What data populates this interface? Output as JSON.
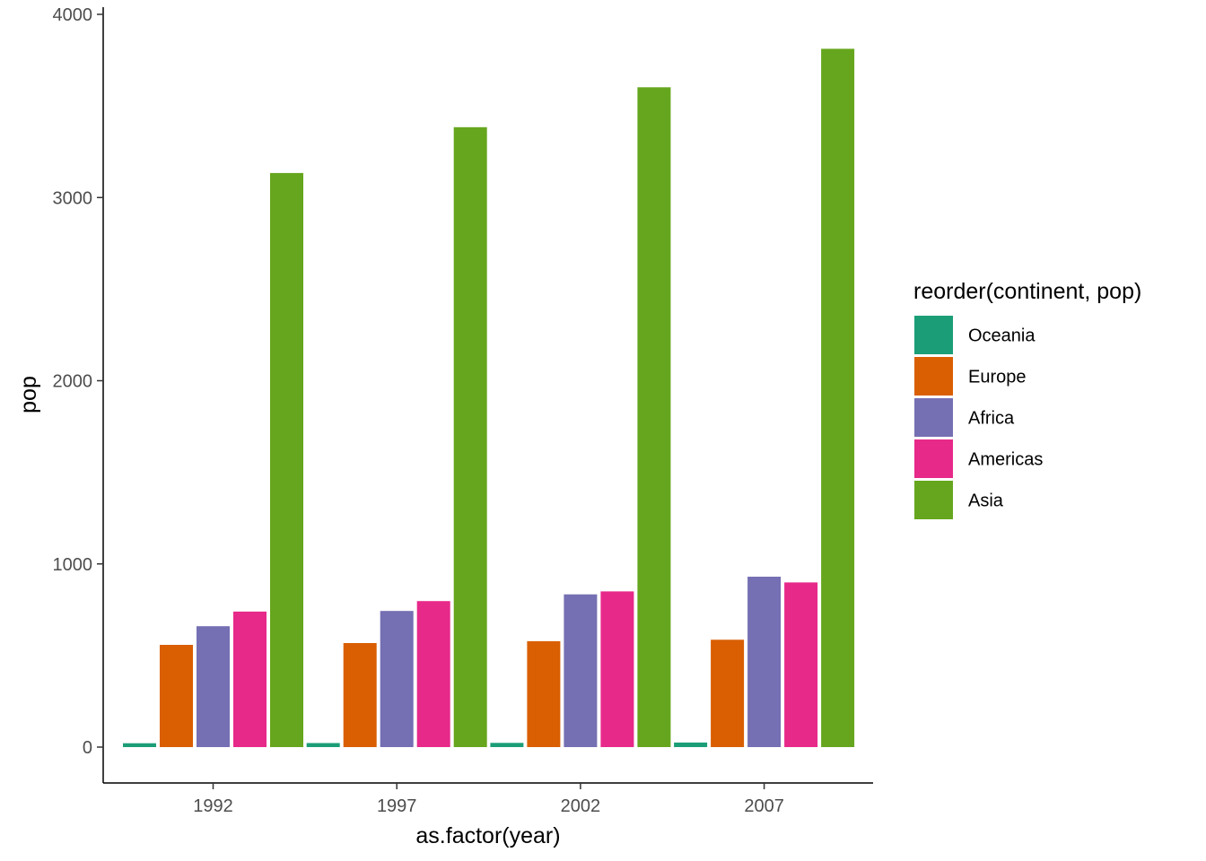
{
  "chart_data": {
    "type": "bar",
    "xlabel": "as.factor(year)",
    "ylabel": "pop",
    "ylim": [
      0,
      4000
    ],
    "yticks": [
      0,
      1000,
      2000,
      3000,
      4000
    ],
    "yticks_text": [
      "0",
      "1000",
      "2000",
      "3000",
      "4000"
    ],
    "categories": [
      "1992",
      "1997",
      "2002",
      "2007"
    ],
    "legend": {
      "title": "reorder(continent, pop)",
      "position": "right"
    },
    "grid": false,
    "series": [
      {
        "name": "Oceania",
        "color": "#1B9E77",
        "values": [
          21,
          22,
          23,
          25
        ]
      },
      {
        "name": "Europe",
        "color": "#D95F02",
        "values": [
          558,
          568,
          578,
          586
        ]
      },
      {
        "name": "Africa",
        "color": "#7570B3",
        "values": [
          660,
          743,
          834,
          930
        ]
      },
      {
        "name": "Americas",
        "color": "#E7298A",
        "values": [
          740,
          797,
          850,
          899
        ]
      },
      {
        "name": "Asia",
        "color": "#66A61E",
        "values": [
          3134,
          3384,
          3602,
          3812
        ]
      }
    ]
  }
}
